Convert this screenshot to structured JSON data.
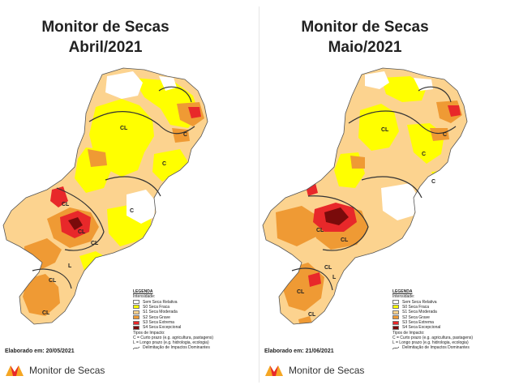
{
  "panels": [
    {
      "title_line1": "Monitor de Secas",
      "title_line2": "Abril/2021",
      "elaborado": "Elaborado em: 20/05/2021",
      "map_labels": [
        "CL",
        "C",
        "C",
        "CL",
        "C",
        "CL",
        "CL",
        "CL",
        "CL",
        "L"
      ]
    },
    {
      "title_line1": "Monitor de Secas",
      "title_line2": "Maio/2021",
      "elaborado": "Elaborado em: 21/06/2021",
      "map_labels": [
        "CL",
        "C",
        "C",
        "CL",
        "CL",
        "CL",
        "CL",
        "CL",
        "L",
        "C"
      ]
    }
  ],
  "legend": {
    "title": "LEGENDA",
    "intensity_title": "Intensidade:",
    "items": [
      {
        "label": "Sem Seca Relativa",
        "color": "#ffffff"
      },
      {
        "label": "S0 Seca Fraca",
        "color": "#ffff00"
      },
      {
        "label": "S1 Seca Moderada",
        "color": "#fcd38f"
      },
      {
        "label": "S2 Seca Grave",
        "color": "#ef9a34"
      },
      {
        "label": "S3 Seca Extrema",
        "color": "#e8282a"
      },
      {
        "label": "S4 Seca Excepcional",
        "color": "#7a0b0b"
      }
    ],
    "impact_title": "Tipos de Impacto:",
    "impacts": [
      "C = Curto prazo (e.g. agricultura, pastagens)",
      "L = Longo prazo (e.g. hidrologia, ecologia)"
    ],
    "line_label": "Delimitação de Impactos Dominantes"
  },
  "brand": {
    "name": "Monitor de Secas",
    "logo_colors": [
      "#f5a623",
      "#e8282a"
    ]
  }
}
